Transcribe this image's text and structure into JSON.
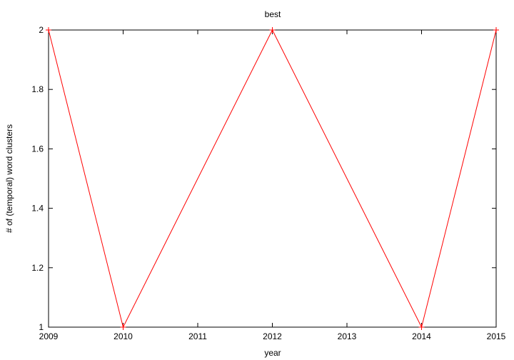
{
  "chart_data": {
    "type": "line",
    "title": "best",
    "xlabel": "year",
    "ylabel": "# of (temporal) word clusters",
    "xlim": [
      2009,
      2015
    ],
    "ylim": [
      1,
      2
    ],
    "x_ticks": [
      "2009",
      "2010",
      "2011",
      "2012",
      "2013",
      "2014",
      "2015"
    ],
    "y_ticks": [
      "1",
      "1.2",
      "1.4",
      "1.6",
      "1.8",
      "2"
    ],
    "grid": false,
    "series": [
      {
        "color": "#ff0000",
        "x": [
          2009,
          2010,
          2012,
          2014,
          2015
        ],
        "y": [
          2,
          1,
          2,
          1,
          2
        ]
      }
    ]
  }
}
